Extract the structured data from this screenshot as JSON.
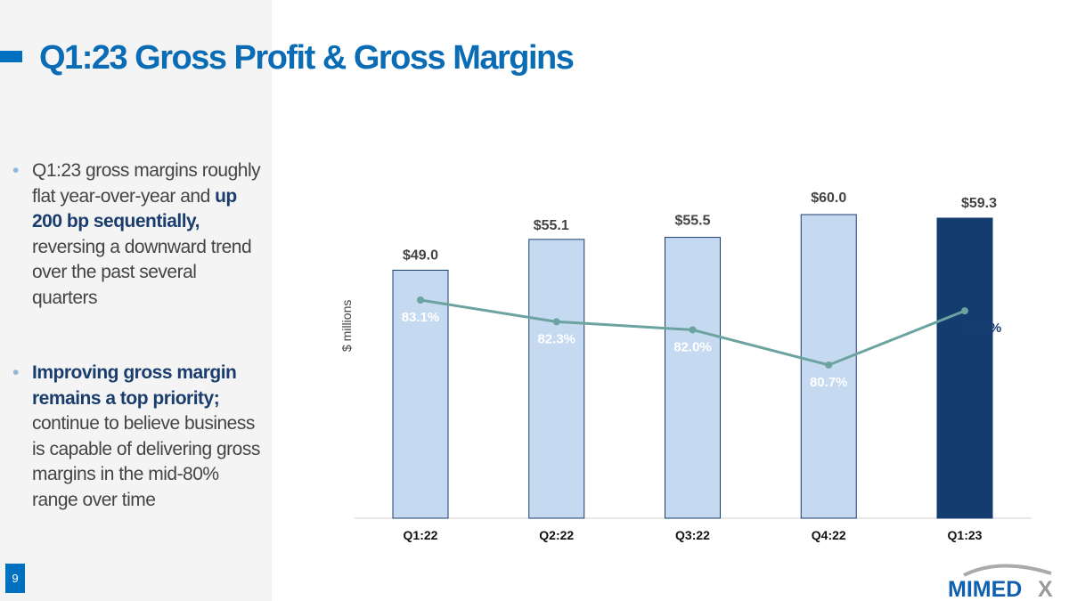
{
  "title": "Q1:23 Gross Profit & Gross Margins",
  "bullets": [
    {
      "parts": [
        {
          "text": "Q1:23 gross margins roughly flat year-over-year and ",
          "bold": false
        },
        {
          "text": "up 200 bp sequentially,",
          "bold": true
        },
        {
          "text": " reversing a downward trend over the past several quarters",
          "bold": false
        }
      ]
    },
    {
      "parts": [
        {
          "text": "Improving gross margin remains a top priority;",
          "bold": true
        },
        {
          "text": " continue to believe business is capable of delivering gross margins in the mid-80% range over time",
          "bold": false
        }
      ]
    }
  ],
  "page_number": "9",
  "logo_text": "MIMEDX",
  "colors": {
    "accent": "#0070c0",
    "bar_light": "#c5d9f1",
    "bar_dark": "#143d6f",
    "line": "#6ba3a0"
  },
  "chart_data": {
    "type": "bar",
    "categories": [
      "Q1:22",
      "Q2:22",
      "Q3:22",
      "Q4:22",
      "Q1:23"
    ],
    "ylabel": "$ millions",
    "series": [
      {
        "name": "Gross Profit",
        "type": "bar",
        "values": [
          49.0,
          55.1,
          55.5,
          60.0,
          59.3
        ],
        "labels": [
          "$49.0",
          "$55.1",
          "$55.5",
          "$60.0",
          "$59.3"
        ]
      },
      {
        "name": "Gross Margin",
        "type": "line",
        "values": [
          83.1,
          82.3,
          82.0,
          80.7,
          82.7
        ],
        "labels": [
          "83.1%",
          "82.3%",
          "82.0%",
          "80.7%",
          "82.7%"
        ]
      }
    ],
    "ylim": [
      0,
      60
    ],
    "highlight_index": 4
  }
}
